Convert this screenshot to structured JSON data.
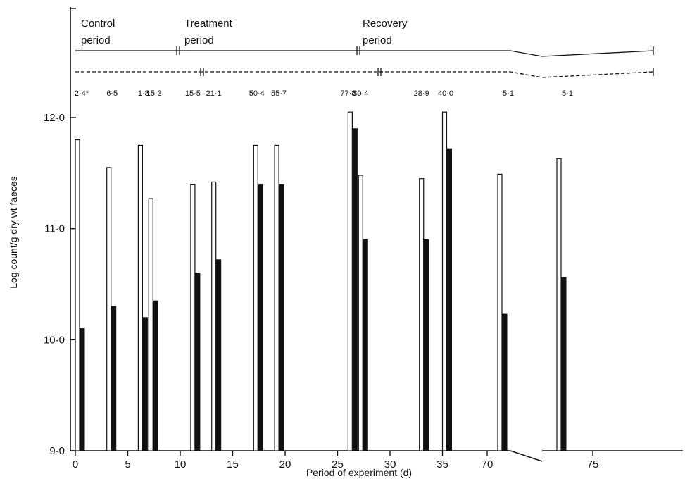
{
  "chart_data": {
    "type": "bar",
    "xlabel": "Period of experiment (d)",
    "ylabel": "Log count/g dry wt faeces",
    "ylim": [
      9.0,
      12.0
    ],
    "yticks": [
      "9·0",
      "10·0",
      "11·0",
      "12·0"
    ],
    "xticks": [
      "0",
      "5",
      "10",
      "15",
      "20",
      "25",
      "30",
      "35",
      "70",
      "75"
    ],
    "axis_break": "between 35 and 70",
    "periods": [
      {
        "label_line1": "Control",
        "label_line2": "period"
      },
      {
        "label_line1": "Treatment",
        "label_line2": "period"
      },
      {
        "label_line1": "Recovery",
        "label_line2": "period"
      }
    ],
    "counts": [
      {
        "x": 0.6,
        "text": "2·4*"
      },
      {
        "x": 3.5,
        "text": "6·5"
      },
      {
        "x": 6.5,
        "text": "1·8"
      },
      {
        "x": 7.5,
        "text": "15·3"
      },
      {
        "x": 11.2,
        "text": "15·5"
      },
      {
        "x": 13.2,
        "text": "21·1"
      },
      {
        "x": 17.3,
        "text": "50·4"
      },
      {
        "x": 19.4,
        "text": "55·7"
      },
      {
        "x": 26.0,
        "text": "77·8"
      },
      {
        "x": 27.2,
        "text": "30·4"
      },
      {
        "x": 33.0,
        "text": "28·9"
      },
      {
        "x": 35.3,
        "text": "40·0"
      },
      {
        "x": 71.0,
        "text": "5·1"
      },
      {
        "x": 73.8,
        "text": "5·1"
      }
    ],
    "series": [
      {
        "style": "open",
        "points": [
          {
            "x": 0,
            "y": 11.8
          },
          {
            "x": 3,
            "y": 11.55
          },
          {
            "x": 6,
            "y": 11.75
          },
          {
            "x": 7,
            "y": 11.27
          },
          {
            "x": 11,
            "y": 11.4
          },
          {
            "x": 13,
            "y": 11.42
          },
          {
            "x": 17,
            "y": 11.75
          },
          {
            "x": 19,
            "y": 11.75
          },
          {
            "x": 26,
            "y": 12.05
          },
          {
            "x": 27,
            "y": 11.48
          },
          {
            "x": 32.8,
            "y": 11.45
          },
          {
            "x": 35,
            "y": 12.05
          },
          {
            "x": 70.5,
            "y": 11.49
          },
          {
            "x": 73.3,
            "y": 11.63
          }
        ]
      },
      {
        "style": "solid",
        "points": [
          {
            "x": 0,
            "y": 10.1
          },
          {
            "x": 3,
            "y": 10.3
          },
          {
            "x": 6,
            "y": 10.2
          },
          {
            "x": 7,
            "y": 10.35
          },
          {
            "x": 11,
            "y": 10.6
          },
          {
            "x": 13,
            "y": 10.72
          },
          {
            "x": 17,
            "y": 11.4
          },
          {
            "x": 19,
            "y": 11.4
          },
          {
            "x": 26,
            "y": 11.9
          },
          {
            "x": 27,
            "y": 10.9
          },
          {
            "x": 32.8,
            "y": 10.9
          },
          {
            "x": 35,
            "y": 11.72
          },
          {
            "x": 70.5,
            "y": 10.23
          },
          {
            "x": 73.3,
            "y": 10.56
          }
        ]
      }
    ]
  }
}
